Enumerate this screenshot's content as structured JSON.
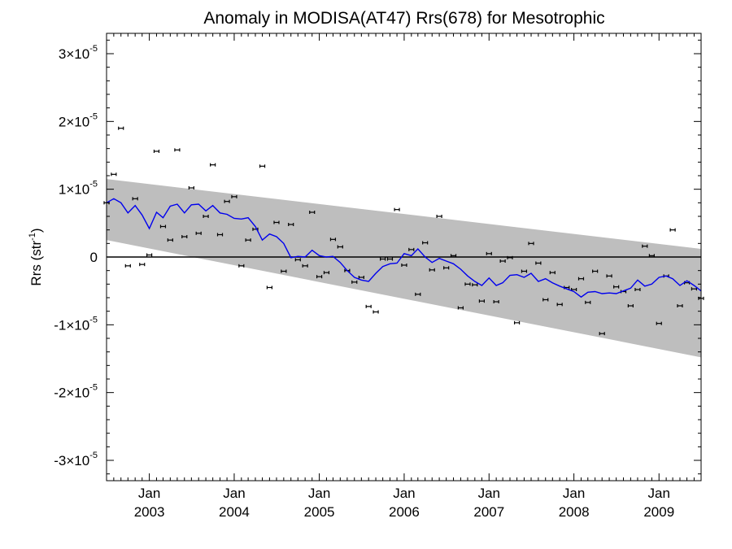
{
  "chart_data": {
    "type": "line",
    "title": "Anomaly in MODISA(AT47) Rrs(678) for Mesotrophic",
    "ylabel": "Rrs (str",
    "ylabel_sup": "-1",
    "ylabel_suffix": ")",
    "xlabel": "",
    "xlim": [
      "2002-07-01",
      "2009-07-01"
    ],
    "ylim": [
      -3.3e-05,
      3.3e-05
    ],
    "grid": false,
    "legend": "none",
    "y_ticks": [
      {
        "value": 3e-05,
        "mantissa": "3×10",
        "exp": "-5"
      },
      {
        "value": 2e-05,
        "mantissa": "2×10",
        "exp": "-5"
      },
      {
        "value": 1e-05,
        "mantissa": "1×10",
        "exp": "-5"
      },
      {
        "value": 0,
        "mantissa": "0",
        "exp": ""
      },
      {
        "value": -1e-05,
        "mantissa": "-1×10",
        "exp": "-5"
      },
      {
        "value": -2e-05,
        "mantissa": "-2×10",
        "exp": "-5"
      },
      {
        "value": -3e-05,
        "mantissa": "-3×10",
        "exp": "-5"
      }
    ],
    "x_ticks": [
      {
        "date": "2003-01-01",
        "month": "Jan",
        "year": "2003"
      },
      {
        "date": "2004-01-01",
        "month": "Jan",
        "year": "2004"
      },
      {
        "date": "2005-01-01",
        "month": "Jan",
        "year": "2005"
      },
      {
        "date": "2006-01-01",
        "month": "Jan",
        "year": "2006"
      },
      {
        "date": "2007-01-01",
        "month": "Jan",
        "year": "2007"
      },
      {
        "date": "2008-01-01",
        "month": "Jan",
        "year": "2008"
      },
      {
        "date": "2009-01-01",
        "month": "Jan",
        "year": "2009"
      }
    ],
    "band": {
      "x": [
        "2002-07-01",
        "2009-07-01"
      ],
      "upper": [
        1.15e-05,
        1.2e-06
      ],
      "lower": [
        2.5e-06,
        -1.48e-05
      ],
      "color": "#bebebe"
    },
    "zero_line_color": "#000000",
    "anomalies": {
      "color": "#000000",
      "x": [
        "2002-07-01",
        "2002-08-01",
        "2002-09-01",
        "2002-10-01",
        "2002-11-01",
        "2002-12-01",
        "2003-01-01",
        "2003-02-01",
        "2003-03-01",
        "2003-04-01",
        "2003-05-01",
        "2003-06-01",
        "2003-07-01",
        "2003-08-01",
        "2003-09-01",
        "2003-10-01",
        "2003-11-01",
        "2003-12-01",
        "2004-01-01",
        "2004-02-01",
        "2004-03-01",
        "2004-04-01",
        "2004-05-01",
        "2004-06-01",
        "2004-07-01",
        "2004-08-01",
        "2004-09-01",
        "2004-10-01",
        "2004-11-01",
        "2004-12-01",
        "2005-01-01",
        "2005-02-01",
        "2005-03-01",
        "2005-04-01",
        "2005-05-01",
        "2005-06-01",
        "2005-07-01",
        "2005-08-01",
        "2005-09-01",
        "2005-10-01",
        "2005-11-01",
        "2005-12-01",
        "2006-01-01",
        "2006-02-01",
        "2006-03-01",
        "2006-04-01",
        "2006-05-01",
        "2006-06-01",
        "2006-07-01",
        "2006-08-01",
        "2006-09-01",
        "2006-10-01",
        "2006-11-01",
        "2006-12-01",
        "2007-01-01",
        "2007-02-01",
        "2007-03-01",
        "2007-04-01",
        "2007-05-01",
        "2007-06-01",
        "2007-07-01",
        "2007-08-01",
        "2007-09-01",
        "2007-10-01",
        "2007-11-01",
        "2007-12-01",
        "2008-01-01",
        "2008-02-01",
        "2008-03-01",
        "2008-04-01",
        "2008-05-01",
        "2008-06-01",
        "2008-07-01",
        "2008-08-01",
        "2008-09-01",
        "2008-10-01",
        "2008-11-01",
        "2008-12-01",
        "2009-01-01",
        "2009-02-01",
        "2009-03-01",
        "2009-04-01",
        "2009-05-01",
        "2009-06-01",
        "2009-07-01"
      ],
      "y": [
        8e-06,
        1.22e-05,
        1.9e-05,
        -1.3e-06,
        8.6e-06,
        -1.1e-06,
        3e-07,
        1.56e-05,
        4.5e-06,
        2.5e-06,
        1.58e-05,
        3e-06,
        1.02e-05,
        3.5e-06,
        6e-06,
        1.36e-05,
        3.3e-06,
        8.2e-06,
        8.9e-06,
        -1.3e-06,
        2.5e-06,
        4.1e-06,
        1.34e-05,
        -4.5e-06,
        5.1e-06,
        -2.1e-06,
        4.8e-06,
        -4e-07,
        -1.3e-06,
        6.6e-06,
        -2.9e-06,
        -2.3e-06,
        2.6e-06,
        1.5e-06,
        -2e-06,
        -3.7e-06,
        -3e-06,
        -7.3e-06,
        -8.1e-06,
        -3e-07,
        -3e-07,
        7e-06,
        -1.2e-06,
        1.1e-06,
        -5.5e-06,
        2.1e-06,
        -1.9e-06,
        6e-06,
        -1.6e-06,
        2e-07,
        -7.5e-06,
        -4e-06,
        -4.1e-06,
        -6.5e-06,
        5e-07,
        -6.6e-06,
        -6e-07,
        -1e-07,
        -9.7e-06,
        -2.1e-06,
        2e-06,
        -9e-07,
        -6.3e-06,
        -2.3e-06,
        -7e-06,
        -4.5e-06,
        -4.8e-06,
        -3.2e-06,
        -6.7e-06,
        -2.1e-06,
        -1.13e-05,
        -2.8e-06,
        -4.4e-06,
        -5.1e-06,
        -7.2e-06,
        -4.8e-06,
        1.6e-06,
        2e-07,
        -9.8e-06,
        -2.8e-06,
        4e-06,
        -7.2e-06,
        -3.8e-06,
        -4.7e-06,
        -6.1e-06
      ]
    },
    "series": [
      {
        "color": "#0000ee",
        "x": [
          "2002-07-01",
          "2002-08-01",
          "2002-09-01",
          "2002-10-01",
          "2002-11-01",
          "2002-12-01",
          "2003-01-01",
          "2003-02-01",
          "2003-03-01",
          "2003-04-01",
          "2003-05-01",
          "2003-06-01",
          "2003-07-01",
          "2003-08-01",
          "2003-09-01",
          "2003-10-01",
          "2003-11-01",
          "2003-12-01",
          "2004-01-01",
          "2004-02-01",
          "2004-03-01",
          "2004-04-01",
          "2004-05-01",
          "2004-06-01",
          "2004-07-01",
          "2004-08-01",
          "2004-09-01",
          "2004-10-01",
          "2004-11-01",
          "2004-12-01",
          "2005-01-01",
          "2005-02-01",
          "2005-03-01",
          "2005-04-01",
          "2005-05-01",
          "2005-06-01",
          "2005-07-01",
          "2005-08-01",
          "2005-09-01",
          "2005-10-01",
          "2005-11-01",
          "2005-12-01",
          "2006-01-01",
          "2006-02-01",
          "2006-03-01",
          "2006-04-01",
          "2006-05-01",
          "2006-06-01",
          "2006-07-01",
          "2006-08-01",
          "2006-09-01",
          "2006-10-01",
          "2006-11-01",
          "2006-12-01",
          "2007-01-01",
          "2007-02-01",
          "2007-03-01",
          "2007-04-01",
          "2007-05-01",
          "2007-06-01",
          "2007-07-01",
          "2007-08-01",
          "2007-09-01",
          "2007-10-01",
          "2007-11-01",
          "2007-12-01",
          "2008-01-01",
          "2008-02-01",
          "2008-03-01",
          "2008-04-01",
          "2008-05-01",
          "2008-06-01",
          "2008-07-01",
          "2008-08-01",
          "2008-09-01",
          "2008-10-01",
          "2008-11-01",
          "2008-12-01",
          "2009-01-01",
          "2009-02-01",
          "2009-03-01",
          "2009-04-01",
          "2009-05-01",
          "2009-06-01",
          "2009-07-01"
        ],
        "y": [
          8e-06,
          8.6e-06,
          8e-06,
          6.5e-06,
          7.6e-06,
          6.2e-06,
          4.2e-06,
          6.6e-06,
          5.8e-06,
          7.5e-06,
          7.8e-06,
          6.5e-06,
          7.7e-06,
          7.8e-06,
          6.8e-06,
          7.6e-06,
          6.5e-06,
          6.3e-06,
          5.7e-06,
          5.6e-06,
          5.8e-06,
          4.5e-06,
          2.5e-06,
          3.4e-06,
          3e-06,
          2e-06,
          -1e-07,
          1e-07,
          0.0,
          1e-06,
          2e-07,
          0.0,
          1e-07,
          -8e-07,
          -2e-06,
          -3e-06,
          -3.4e-06,
          -3.6e-06,
          -2.4e-06,
          -1.4e-06,
          -1e-06,
          -9e-07,
          5e-07,
          2e-07,
          1.2e-06,
          0.0,
          -8e-07,
          -2e-07,
          -6e-07,
          -1e-06,
          -1.8e-06,
          -2.8e-06,
          -3.6e-06,
          -4.2e-06,
          -3.1e-06,
          -4.2e-06,
          -3.8e-06,
          -2.7e-06,
          -2.6e-06,
          -3e-06,
          -2.4e-06,
          -3.6e-06,
          -3.2e-06,
          -3.8e-06,
          -4.3e-06,
          -4.7e-06,
          -5.1e-06,
          -5.9e-06,
          -5.2e-06,
          -5.1e-06,
          -5.4e-06,
          -5.3e-06,
          -5.4e-06,
          -5e-06,
          -4.6e-06,
          -3.4e-06,
          -4.3e-06,
          -4e-06,
          -3e-06,
          -2.8e-06,
          -3.2e-06,
          -4.2e-06,
          -3.5e-06,
          -4.2e-06,
          -5e-06
        ]
      }
    ]
  }
}
